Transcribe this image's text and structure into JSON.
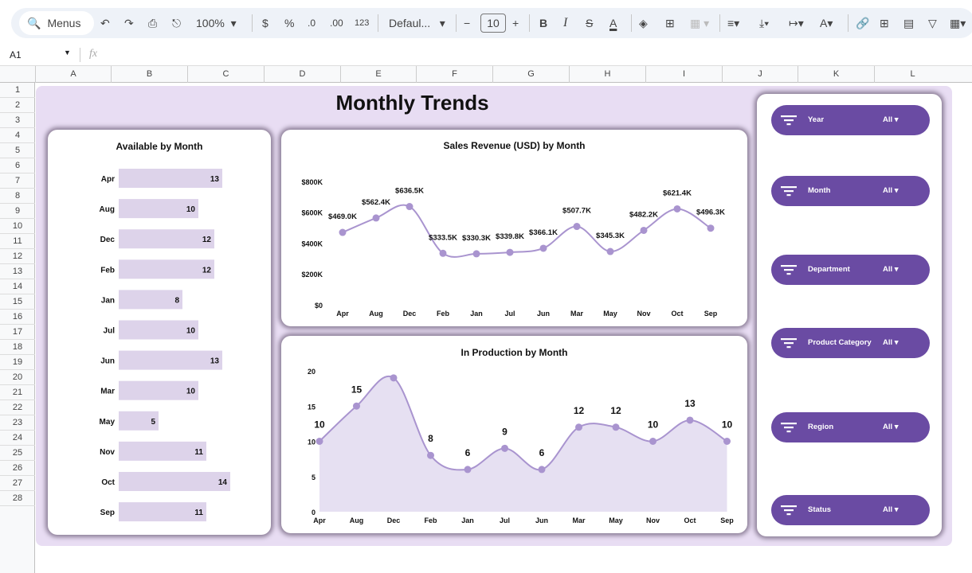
{
  "toolbar": {
    "search": "Menus",
    "zoom": "100%",
    "currency": "$",
    "percent": "%",
    "dec_less": ".0",
    "dec_more": ".00",
    "number_format": "123",
    "font": "Defaul...",
    "font_size": "10",
    "bold": "B",
    "italic": "I",
    "text_color": "A"
  },
  "formula_bar": {
    "cell_ref": "A1",
    "fx": "fx"
  },
  "columns": [
    "A",
    "B",
    "C",
    "D",
    "E",
    "F",
    "G",
    "H",
    "I",
    "J",
    "K",
    "L"
  ],
  "rows": [
    "1",
    "2",
    "3",
    "4",
    "5",
    "6",
    "7",
    "8",
    "9",
    "10",
    "11",
    "12",
    "13",
    "14",
    "15",
    "16",
    "17",
    "18",
    "19",
    "20",
    "21",
    "22",
    "23",
    "24",
    "25",
    "26",
    "27",
    "28"
  ],
  "dashboard": {
    "title": "Monthly Trends"
  },
  "filters": [
    {
      "label": "Year",
      "value": "All"
    },
    {
      "label": "Month",
      "value": "All"
    },
    {
      "label": "Department",
      "value": "All"
    },
    {
      "label": "Product Category",
      "value": "All"
    },
    {
      "label": "Region",
      "value": "All"
    },
    {
      "label": "Status",
      "value": "All"
    }
  ],
  "colors": {
    "accent": "#6a4ba3",
    "bar": "#ddd3ea",
    "line": "#a994cf",
    "area": "#e6e0f2"
  },
  "chart_data": [
    {
      "type": "bar",
      "title": "Available by Month",
      "categories": [
        "Apr",
        "Aug",
        "Dec",
        "Feb",
        "Jan",
        "Jul",
        "Jun",
        "Mar",
        "May",
        "Nov",
        "Oct",
        "Sep"
      ],
      "values": [
        13,
        10,
        12,
        12,
        8,
        10,
        13,
        10,
        5,
        11,
        14,
        11
      ]
    },
    {
      "type": "line",
      "title": "Sales Revenue (USD) by Month",
      "categories": [
        "Apr",
        "Aug",
        "Dec",
        "Feb",
        "Jan",
        "Jul",
        "Jun",
        "Mar",
        "May",
        "Nov",
        "Oct",
        "Sep"
      ],
      "values": [
        469.0,
        562.4,
        636.5,
        333.5,
        330.3,
        339.8,
        366.1,
        507.7,
        345.3,
        482.2,
        621.4,
        496.3
      ],
      "labels": [
        "$469.0K",
        "$562.4K",
        "$636.5K",
        "$333.5K",
        "$330.3K",
        "$339.8K",
        "$366.1K",
        "$507.7K",
        "$345.3K",
        "$482.2K",
        "$621.4K",
        "$496.3K"
      ],
      "yticks": [
        "$0",
        "$200K",
        "$400K",
        "$600K",
        "$800K"
      ],
      "ylim": [
        0,
        800
      ]
    },
    {
      "type": "area",
      "title": "In Production by Month",
      "categories": [
        "Apr",
        "Aug",
        "Dec",
        "Feb",
        "Jan",
        "Jul",
        "Jun",
        "Mar",
        "May",
        "Nov",
        "Oct",
        "Sep"
      ],
      "values": [
        10,
        15,
        19,
        8,
        6,
        9,
        6,
        12,
        12,
        10,
        13,
        10
      ],
      "labels": [
        "10",
        "15",
        "",
        "8",
        "6",
        "9",
        "6",
        "12",
        "12",
        "10",
        "13",
        "10"
      ],
      "yticks": [
        "0",
        "5",
        "10",
        "15",
        "20"
      ],
      "ylim": [
        0,
        20
      ]
    }
  ]
}
